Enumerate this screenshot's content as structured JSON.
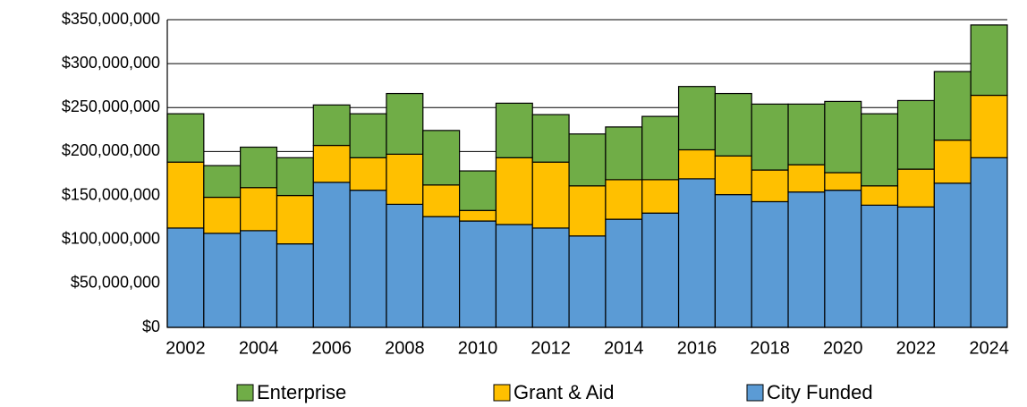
{
  "chart_data": {
    "type": "stacked-bar",
    "categories": [
      "2002",
      null,
      "2004",
      null,
      "2006",
      null,
      "2008",
      null,
      "2010",
      null,
      "2012",
      null,
      "2014",
      null,
      "2016",
      null,
      "2018",
      null,
      "2020",
      null,
      "2022",
      null,
      "2024"
    ],
    "series": [
      {
        "name": "City Funded",
        "color": "#5b9bd5",
        "values": [
          113000000,
          107000000,
          110000000,
          95000000,
          165000000,
          156000000,
          140000000,
          126000000,
          121000000,
          117000000,
          113000000,
          104000000,
          123000000,
          130000000,
          169000000,
          151000000,
          143000000,
          154000000,
          156000000,
          139000000,
          137000000,
          164000000,
          193000000
        ]
      },
      {
        "name": "Grant & Aid",
        "color": "#ffc000",
        "values": [
          75000000,
          41000000,
          49000000,
          55000000,
          42000000,
          37000000,
          57000000,
          36000000,
          12000000,
          76000000,
          75000000,
          57000000,
          45000000,
          38000000,
          33000000,
          44000000,
          36000000,
          31000000,
          20000000,
          22000000,
          43000000,
          49000000,
          71000000
        ]
      },
      {
        "name": "Enterprise",
        "color": "#70ad47",
        "values": [
          55000000,
          36000000,
          46000000,
          43000000,
          46000000,
          50000000,
          69000000,
          62000000,
          45000000,
          62000000,
          54000000,
          59000000,
          60000000,
          72000000,
          72000000,
          71000000,
          75000000,
          69000000,
          81000000,
          82000000,
          78000000,
          78000000,
          80000000
        ]
      }
    ],
    "ylim": [
      0,
      350000000
    ],
    "yticks": [
      {
        "value": 0,
        "label": "$0"
      },
      {
        "value": 50000000,
        "label": "$50,000,000"
      },
      {
        "value": 100000000,
        "label": "$100,000,000"
      },
      {
        "value": 150000000,
        "label": "$150,000,000"
      },
      {
        "value": 200000000,
        "label": "$200,000,000"
      },
      {
        "value": 250000000,
        "label": "$250,000,000"
      },
      {
        "value": 300000000,
        "label": "$300,000,000"
      },
      {
        "value": 350000000,
        "label": "$350,000,000"
      }
    ],
    "grid": true,
    "legend": "bottom"
  }
}
